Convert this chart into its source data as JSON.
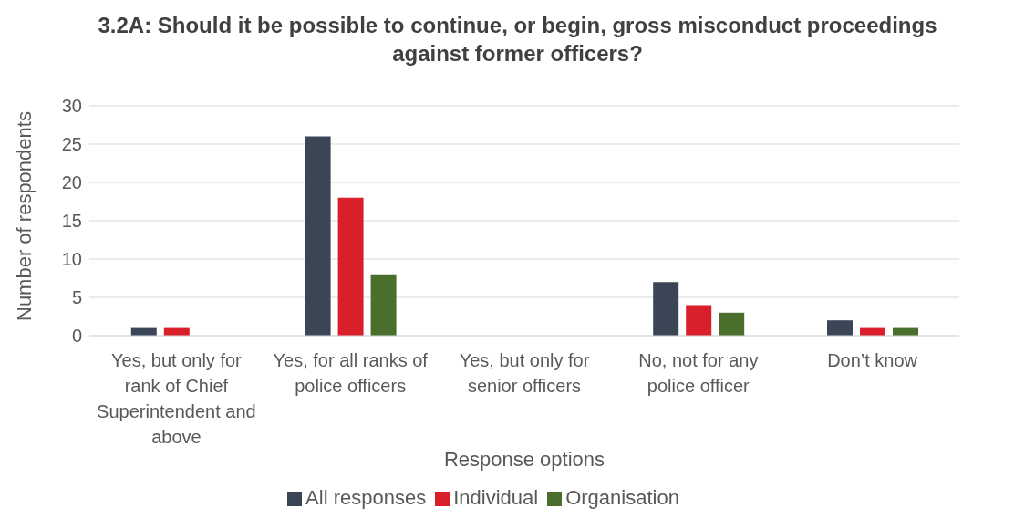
{
  "chart_data": {
    "type": "bar",
    "title": "3.2A: Should it be possible to continue, or begin, gross misconduct proceedings against former officers?",
    "xlabel": "Response options",
    "ylabel": "Number of respondents",
    "categories": [
      "Yes, but only for rank of Chief Superintendent and above",
      "Yes, for all ranks of police officers",
      "Yes, but only for senior officers",
      "No, not for any police officer",
      "Don’t know"
    ],
    "series": [
      {
        "name": "All responses",
        "color": "#3a4556",
        "values": [
          1,
          26,
          0,
          7,
          2
        ]
      },
      {
        "name": "Individual",
        "color": "#d81f2a",
        "values": [
          1,
          18,
          0,
          4,
          1
        ]
      },
      {
        "name": "Organisation",
        "color": "#4a6e2c",
        "values": [
          0,
          8,
          0,
          3,
          1
        ]
      }
    ],
    "ylim": [
      0,
      30
    ],
    "yticks": [
      0,
      5,
      10,
      15,
      20,
      25,
      30
    ],
    "grid": "y",
    "legend": "bottom"
  }
}
